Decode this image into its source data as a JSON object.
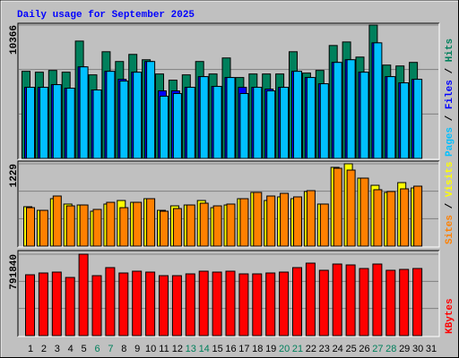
{
  "chart_data": [
    {
      "type": "bar",
      "title": "Daily usage for September 2025",
      "legend_separator": " / ",
      "ylim": [
        0,
        10366
      ],
      "yticks": [
        10366
      ],
      "series": [
        {
          "name": "Hits",
          "color": "#00805c",
          "values": [
            6772,
            6703,
            6841,
            6703,
            9122,
            6496,
            8293,
            7533,
            8086,
            7671,
            6565,
            6081,
            6496,
            7533,
            6565,
            7809,
            6289,
            6565,
            6565,
            6565,
            8293,
            6634,
            6841,
            8777,
            9053,
            7878,
            10366,
            7256,
            7187,
            7464,
            null
          ]
        },
        {
          "name": "Files",
          "color": "#0000ff",
          "values": [
            5528,
            5528,
            5736,
            5459,
            7118,
            5321,
            6772,
            6150,
            6703,
            7533,
            5252,
            5252,
            5528,
            6358,
            5598,
            6289,
            5528,
            5528,
            5390,
            5528,
            6772,
            6289,
            5805,
            7464,
            7671,
            6703,
            8984,
            6358,
            5874,
            6150,
            null
          ]
        },
        {
          "name": "Pages",
          "color": "#00c0ff",
          "values": [
            5528,
            5528,
            5736,
            5459,
            7118,
            5321,
            6772,
            6012,
            6703,
            7533,
            4837,
            5045,
            5528,
            6358,
            5598,
            6289,
            5045,
            5528,
            5252,
            5528,
            6772,
            6289,
            5805,
            7464,
            7671,
            6703,
            8984,
            6358,
            5874,
            6150,
            null
          ]
        }
      ]
    },
    {
      "type": "bar",
      "legend_separator": " / ",
      "ylim": [
        0,
        1229
      ],
      "yticks": [
        1229
      ],
      "series": [
        {
          "name": "Visits",
          "color": "#ffff00",
          "values": [
            588,
            534,
            708,
            628,
            614,
            521,
            628,
            681,
            654,
            708,
            534,
            601,
            614,
            681,
            574,
            614,
            708,
            802,
            681,
            735,
            708,
            815,
            628,
            1176,
            1229,
            1015,
            908,
            802,
            948,
            868,
            null
          ]
        },
        {
          "name": "Sites",
          "color": "#ff8000",
          "values": [
            574,
            534,
            748,
            601,
            614,
            548,
            654,
            574,
            654,
            708,
            521,
            561,
            614,
            641,
            601,
            628,
            708,
            802,
            748,
            788,
            735,
            828,
            628,
            1162,
            1135,
            1015,
            842,
            815,
            855,
            895,
            null
          ]
        }
      ]
    },
    {
      "type": "bar",
      "ylim": [
        0,
        791840
      ],
      "yticks": [
        791840
      ],
      "categories": [
        "1",
        "2",
        "3",
        "4",
        "5",
        "6",
        "7",
        "8",
        "9",
        "10",
        "11",
        "12",
        "13",
        "14",
        "15",
        "16",
        "17",
        "18",
        "19",
        "20",
        "21",
        "22",
        "23",
        "24",
        "25",
        "26",
        "27",
        "28",
        "29",
        "30",
        "31"
      ],
      "highlight_categories": [
        "6",
        "7",
        "13",
        "14",
        "20",
        "21",
        "27",
        "28"
      ],
      "highlight_color": "#00805c",
      "series": [
        {
          "name": "KBytes",
          "color": "#ff0000",
          "values": [
            591700,
            609100,
            617800,
            565600,
            791840,
            583000,
            661300,
            609100,
            626500,
            617800,
            583000,
            583000,
            600400,
            626500,
            617800,
            626500,
            600400,
            600400,
            609100,
            617800,
            661300,
            704800,
            635200,
            696100,
            687400,
            652600,
            696100,
            635200,
            643900,
            652600,
            null
          ]
        }
      ]
    }
  ]
}
